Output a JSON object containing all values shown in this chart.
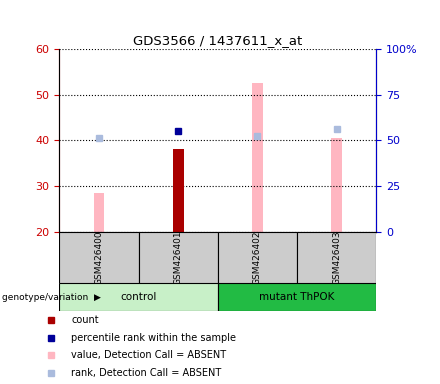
{
  "title": "GDS3566 / 1437611_x_at",
  "samples": [
    "GSM426400",
    "GSM426401",
    "GSM426402",
    "GSM426403"
  ],
  "groups": [
    {
      "name": "control",
      "samples": [
        "GSM426400",
        "GSM426401"
      ],
      "color": "#c8f0c8"
    },
    {
      "name": "mutant ThPOK",
      "samples": [
        "GSM426402",
        "GSM426403"
      ],
      "color": "#22bb44"
    }
  ],
  "ylim_left": [
    20,
    60
  ],
  "ylim_right": [
    0,
    100
  ],
  "yticks_left": [
    20,
    30,
    40,
    50,
    60
  ],
  "yticks_right": [
    0,
    25,
    50,
    75,
    100
  ],
  "yticklabels_right": [
    "0",
    "25",
    "50",
    "75",
    "100%"
  ],
  "count_values": [
    null,
    38,
    null,
    null
  ],
  "count_color": "#aa0000",
  "percentile_rank_values": [
    null,
    42,
    null,
    null
  ],
  "percentile_rank_color": "#000099",
  "value_absent_values": [
    28.5,
    null,
    52.5,
    40.5
  ],
  "value_absent_color": "#ffb6c1",
  "rank_absent_values": [
    40.5,
    null,
    41.0,
    42.5
  ],
  "rank_absent_color": "#aabbdd",
  "bar_width": 0.25,
  "left_yaxis_color": "#cc0000",
  "right_yaxis_color": "#0000cc",
  "sample_box_color": "#cccccc",
  "legend_items": [
    {
      "label": "count",
      "color": "#aa0000"
    },
    {
      "label": "percentile rank within the sample",
      "color": "#000099"
    },
    {
      "label": "value, Detection Call = ABSENT",
      "color": "#ffb6c1"
    },
    {
      "label": "rank, Detection Call = ABSENT",
      "color": "#aabbdd"
    }
  ]
}
